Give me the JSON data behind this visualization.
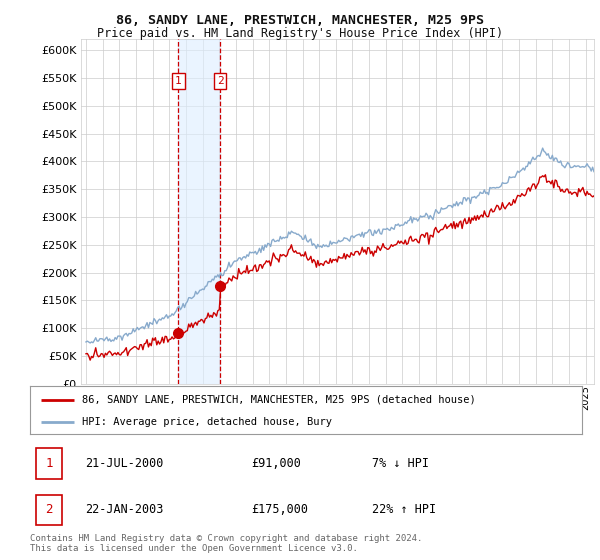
{
  "title1": "86, SANDY LANE, PRESTWICH, MANCHESTER, M25 9PS",
  "title2": "Price paid vs. HM Land Registry's House Price Index (HPI)",
  "ytick_values": [
    0,
    50000,
    100000,
    150000,
    200000,
    250000,
    300000,
    350000,
    400000,
    450000,
    500000,
    550000,
    600000
  ],
  "ylim": [
    0,
    620000
  ],
  "sale1_date_num": 2000.55,
  "sale1_label": "1",
  "sale1_price": 91000,
  "sale2_date_num": 2003.06,
  "sale2_label": "2",
  "sale2_price": 175000,
  "hpi_line_color": "#88aacc",
  "price_line_color": "#cc0000",
  "shading_color": "#ddeeff",
  "legend_line1": "86, SANDY LANE, PRESTWICH, MANCHESTER, M25 9PS (detached house)",
  "legend_line2": "HPI: Average price, detached house, Bury",
  "table_row1_num": "1",
  "table_row1_date": "21-JUL-2000",
  "table_row1_price": "£91,000",
  "table_row1_hpi": "7% ↓ HPI",
  "table_row2_num": "2",
  "table_row2_date": "22-JAN-2003",
  "table_row2_price": "£175,000",
  "table_row2_hpi": "22% ↑ HPI",
  "footer": "Contains HM Land Registry data © Crown copyright and database right 2024.\nThis data is licensed under the Open Government Licence v3.0.",
  "xmin": 1994.7,
  "xmax": 2025.5,
  "background_color": "#ffffff",
  "grid_color": "#cccccc"
}
